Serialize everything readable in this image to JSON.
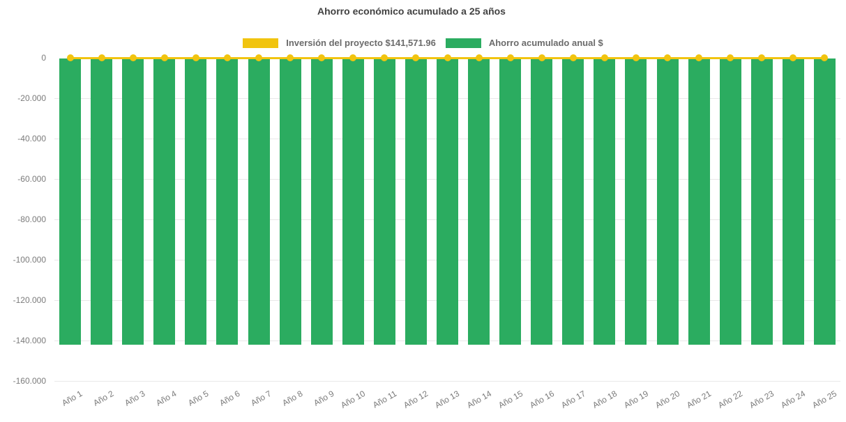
{
  "title": "Ahorro económico acumulado a 25 años",
  "legend": {
    "items": [
      {
        "label": "Inversión del proyecto $141,571.96",
        "color": "#F1C40F",
        "series_type": "line"
      },
      {
        "label": "Ahorro acumulado anual $",
        "color": "#2BAC60",
        "series_type": "bar"
      }
    ]
  },
  "colors": {
    "bar_green": "#2BAC60",
    "line_yellow": "#F1C40F",
    "title_text": "#424242",
    "axis_text": "#7b7b7b",
    "legend_text": "#6b6b6b",
    "gridline": "#e8e8e8",
    "background": "#ffffff"
  },
  "chart_data": {
    "type": "bar",
    "title": "Ahorro económico acumulado a 25 años",
    "xlabel": "",
    "ylabel": "",
    "ylim": [
      -160000,
      0
    ],
    "ytick_step": 20000,
    "yticks": [
      "0",
      "-20.000",
      "-40.000",
      "-60.000",
      "-80.000",
      "-100.000",
      "-120.000",
      "-140.000",
      "-160.000"
    ],
    "grid": true,
    "legend_position": "top",
    "x_tick_rotation_deg": -30,
    "categories": [
      "Año 1",
      "Año 2",
      "Año 3",
      "Año 4",
      "Año 5",
      "Año 6",
      "Año 7",
      "Año 8",
      "Año 9",
      "Año 10",
      "Año 11",
      "Año 12",
      "Año 13",
      "Año 14",
      "Año 15",
      "Año 16",
      "Año 17",
      "Año 18",
      "Año 19",
      "Año 20",
      "Año 21",
      "Año 22",
      "Año 23",
      "Año 24",
      "Año 25"
    ],
    "series": [
      {
        "name": "Inversión del proyecto $141,571.96",
        "type": "line",
        "color": "#F1C40F",
        "marker": "circle",
        "values": [
          0,
          0,
          0,
          0,
          0,
          0,
          0,
          0,
          0,
          0,
          0,
          0,
          0,
          0,
          0,
          0,
          0,
          0,
          0,
          0,
          0,
          0,
          0,
          0,
          0
        ]
      },
      {
        "name": "Ahorro acumulado anual $",
        "type": "bar",
        "color": "#2BAC60",
        "values": [
          -141571.96,
          -141571.96,
          -141571.96,
          -141571.96,
          -141571.96,
          -141571.96,
          -141571.96,
          -141571.96,
          -141571.96,
          -141571.96,
          -141571.96,
          -141571.96,
          -141571.96,
          -141571.96,
          -141571.96,
          -141571.96,
          -141571.96,
          -141571.96,
          -141571.96,
          -141571.96,
          -141571.96,
          -141571.96,
          -141571.96,
          -141571.96,
          -141571.96
        ]
      }
    ]
  }
}
